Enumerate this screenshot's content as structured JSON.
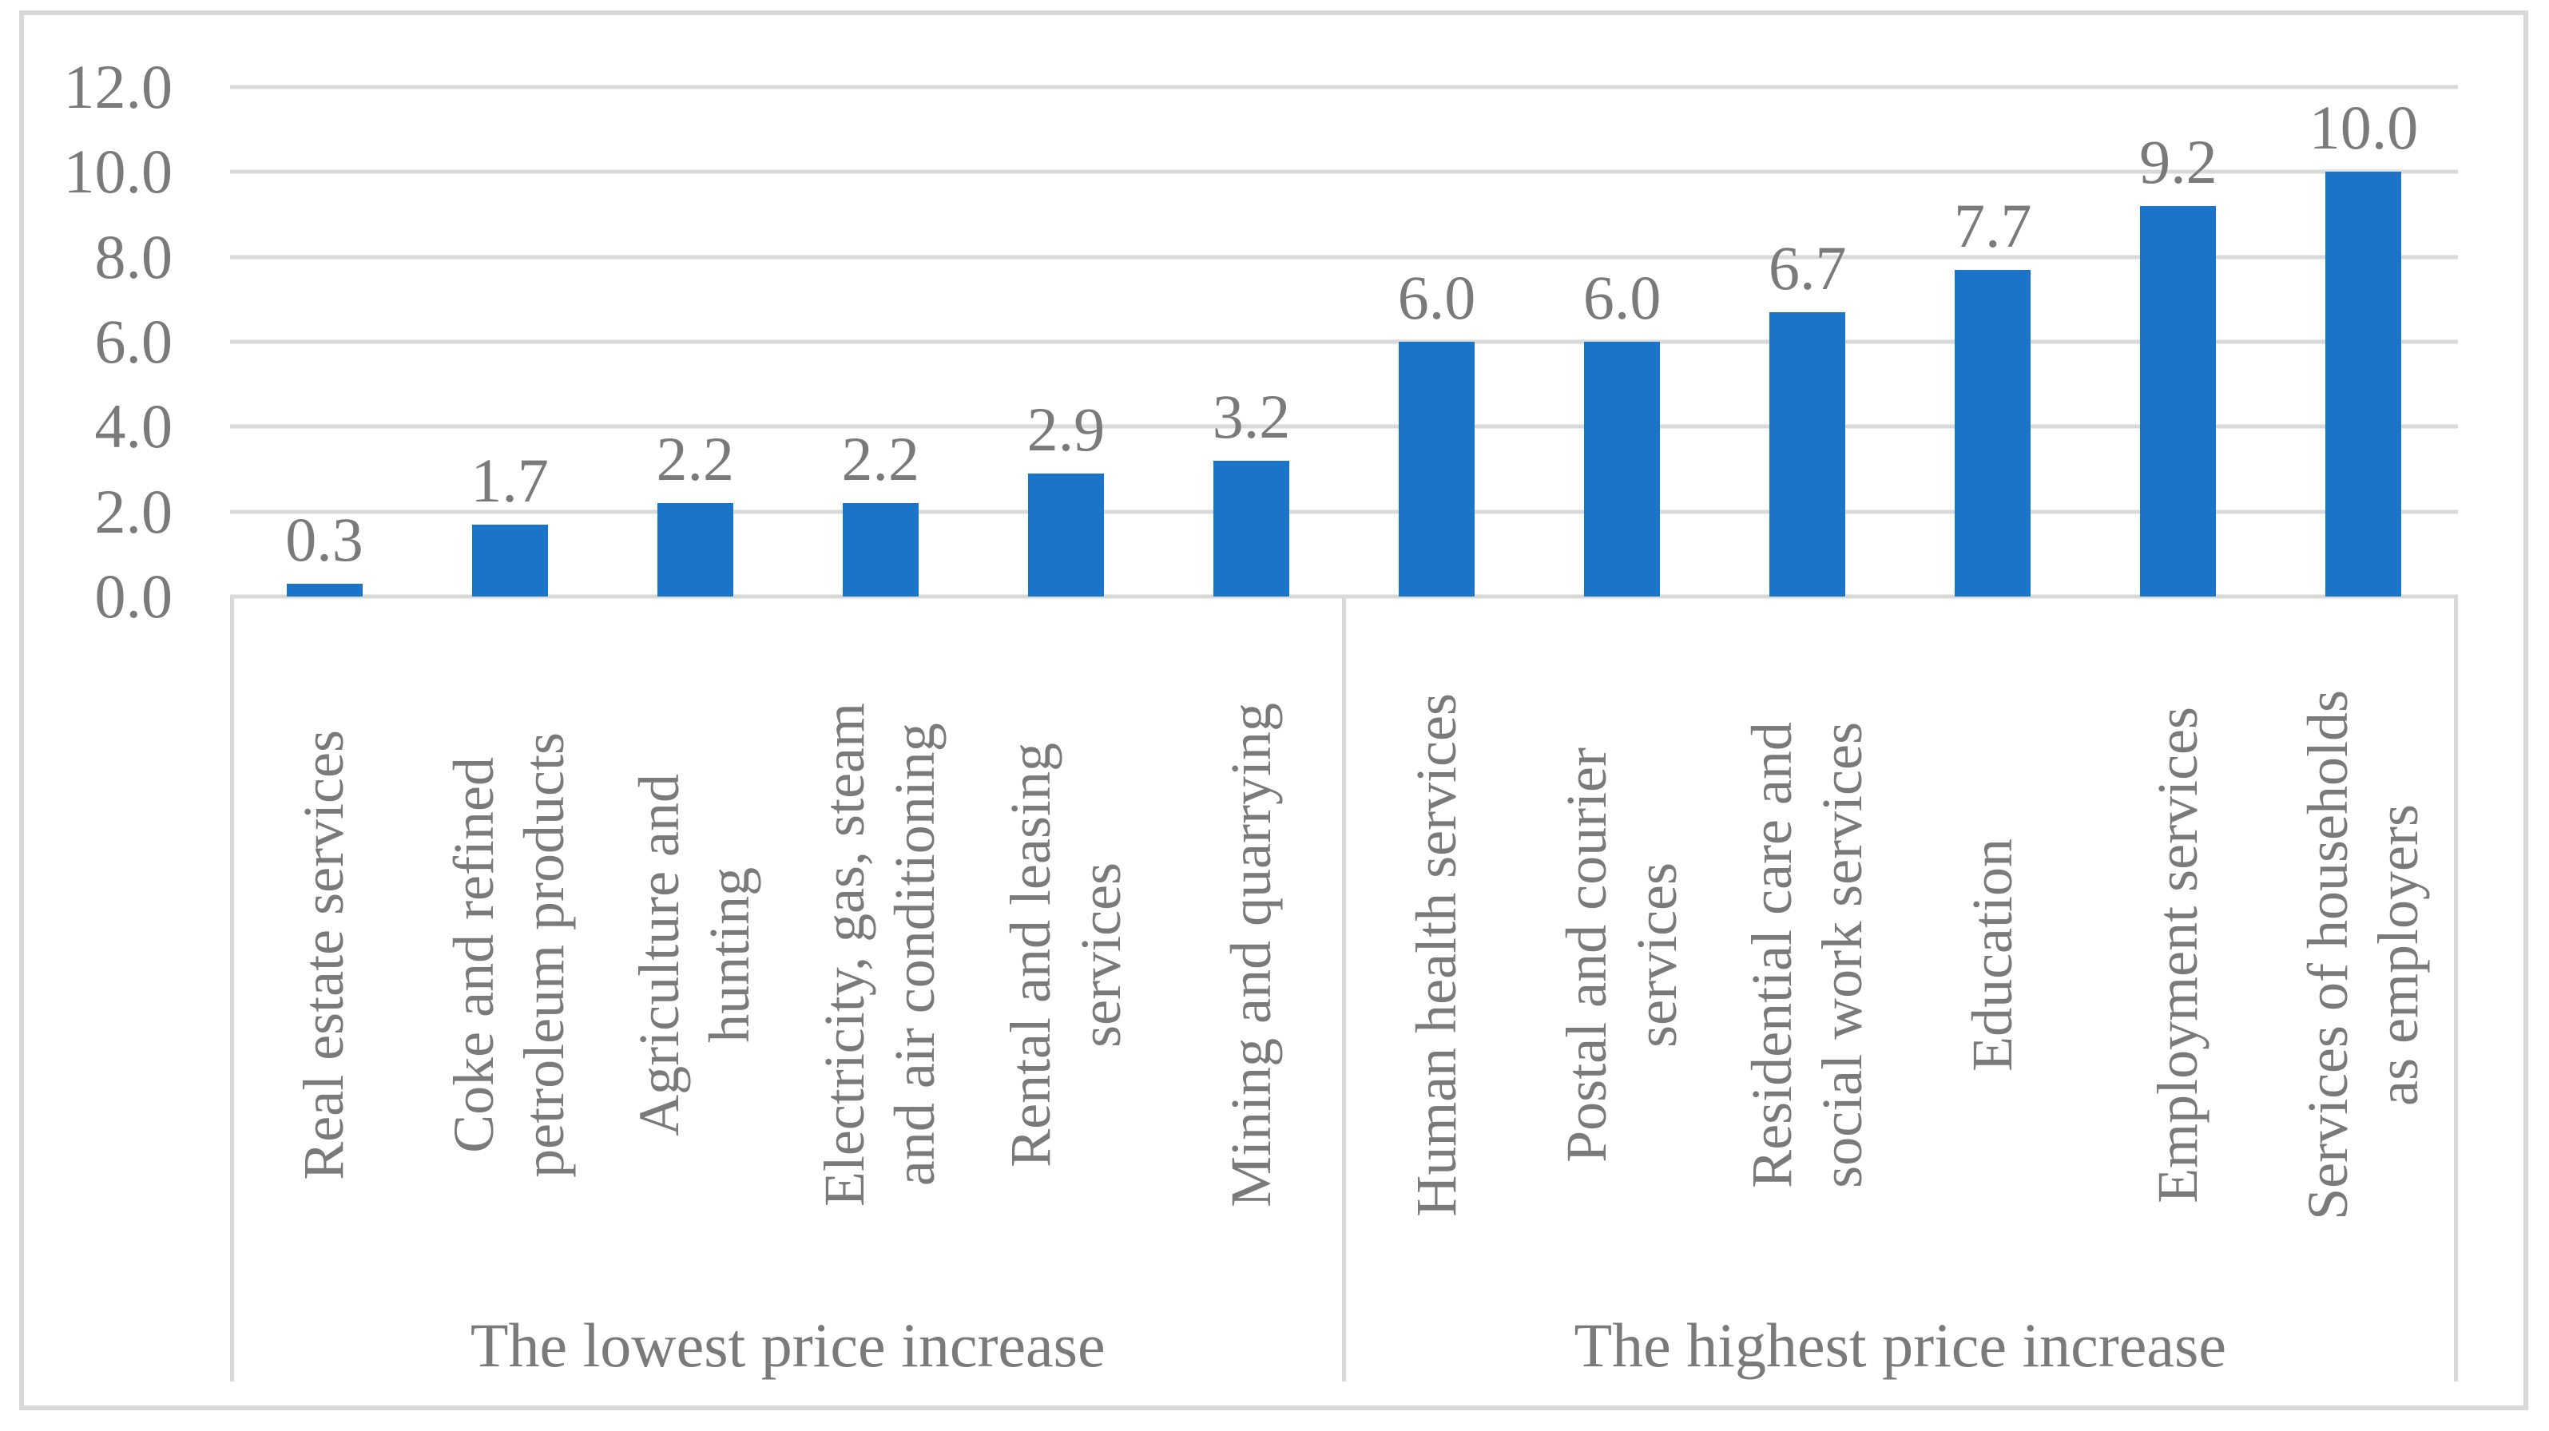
{
  "chart_data": {
    "type": "bar",
    "title": "",
    "xlabel": "",
    "ylabel": "",
    "ylim": [
      0,
      12
    ],
    "ytick_step": 2,
    "yticks": [
      "12.0",
      "10.0",
      "8.0",
      "6.0",
      "4.0",
      "2.0",
      "0.0"
    ],
    "grid": true,
    "legend": false,
    "bar_color": "#1B74C8",
    "grid_color": "#D9D9D9",
    "text_color": "#7A7A7A",
    "groups": [
      {
        "label": "The lowest price increase",
        "categories": [
          "Real estate services",
          "Coke and refined\npetroleum products",
          "Agriculture and\nhunting",
          "Electricity, gas, steam\nand air conditioning",
          "Rental and leasing\nservices",
          "Mining and quarrying"
        ],
        "values": [
          0.3,
          1.7,
          2.2,
          2.2,
          2.9,
          3.2
        ],
        "value_labels": [
          "0.3",
          "1.7",
          "2.2",
          "2.2",
          "2.9",
          "3.2"
        ]
      },
      {
        "label": "The highest price increase",
        "categories": [
          "Human health services",
          "Postal and courier\nservices",
          "Residential care and\nsocial work services",
          "Education",
          "Employment services",
          "Services of households\nas employers"
        ],
        "values": [
          6.0,
          6.0,
          6.7,
          7.7,
          9.2,
          10.0
        ],
        "value_labels": [
          "6.0",
          "6.0",
          "6.7",
          "7.7",
          "9.2",
          "10.0"
        ]
      }
    ]
  }
}
